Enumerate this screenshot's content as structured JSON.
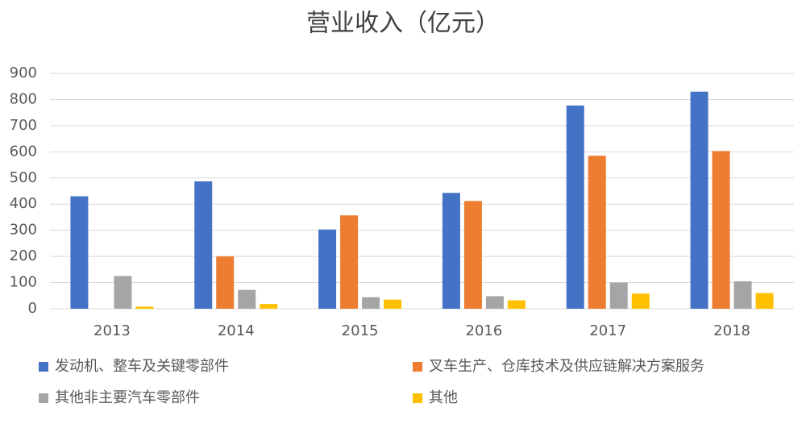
{
  "chart_data": {
    "type": "bar",
    "title": "营业收入（亿元）",
    "categories": [
      "2013",
      "2014",
      "2015",
      "2016",
      "2017",
      "2018"
    ],
    "series": [
      {
        "name": "发动机、整车及关键零部件",
        "color": "#4472c4",
        "values": [
          430,
          487,
          303,
          443,
          777,
          830
        ]
      },
      {
        "name": "叉车生产、仓库技术及供应链解决方案服务",
        "color": "#ed7d31",
        "values": [
          null,
          200,
          357,
          412,
          585,
          603
        ]
      },
      {
        "name": "其他非主要汽车零部件",
        "color": "#a5a5a5",
        "values": [
          125,
          72,
          44,
          48,
          100,
          105
        ]
      },
      {
        "name": "其他",
        "color": "#ffc000",
        "values": [
          8,
          18,
          35,
          32,
          58,
          60
        ]
      }
    ],
    "ylim": [
      0,
      900
    ],
    "yticks": [
      0,
      100,
      200,
      300,
      400,
      500,
      600,
      700,
      800,
      900
    ],
    "grid": true,
    "legend": "bottom"
  }
}
